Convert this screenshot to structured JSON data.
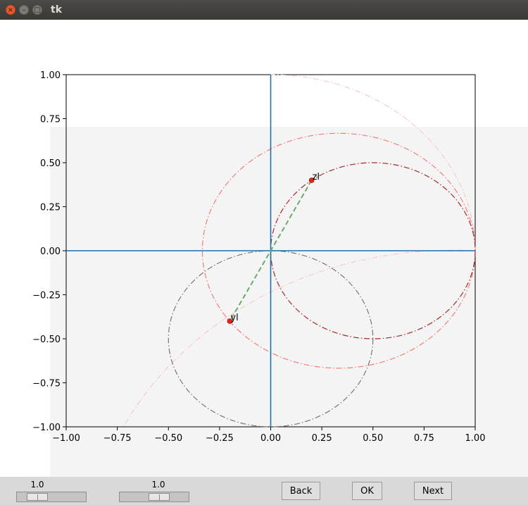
{
  "window": {
    "title": "tk",
    "close_glyph": "×",
    "minimize_glyph": "–",
    "maximize_glyph": "□"
  },
  "plot": {
    "xticks": [
      "−1.00",
      "−0.75",
      "−0.50",
      "−0.25",
      "0.00",
      "0.25",
      "0.50",
      "0.75",
      "1.00"
    ],
    "yticks": [
      "1.00",
      "0.75",
      "0.50",
      "0.25",
      "0.00",
      "−0.25",
      "−0.50",
      "−0.75",
      "−1.00"
    ],
    "points": [
      {
        "label": "zl",
        "x": 0.2,
        "y": 0.4
      },
      {
        "label": "yl",
        "x": -0.2,
        "y": -0.4
      }
    ],
    "colors": {
      "axes": "#1f6ea8",
      "point": "#e8231c",
      "salmon": "#f07f7a",
      "darkred": "#a52a2a",
      "gray": "#777777",
      "green": "#6aaa6a",
      "faint": "#f5c3c3"
    }
  },
  "controls": {
    "slider1_value": "1.0",
    "slider2_value": "1.0",
    "back_label": "Back",
    "ok_label": "OK",
    "next_label": "Next"
  }
}
